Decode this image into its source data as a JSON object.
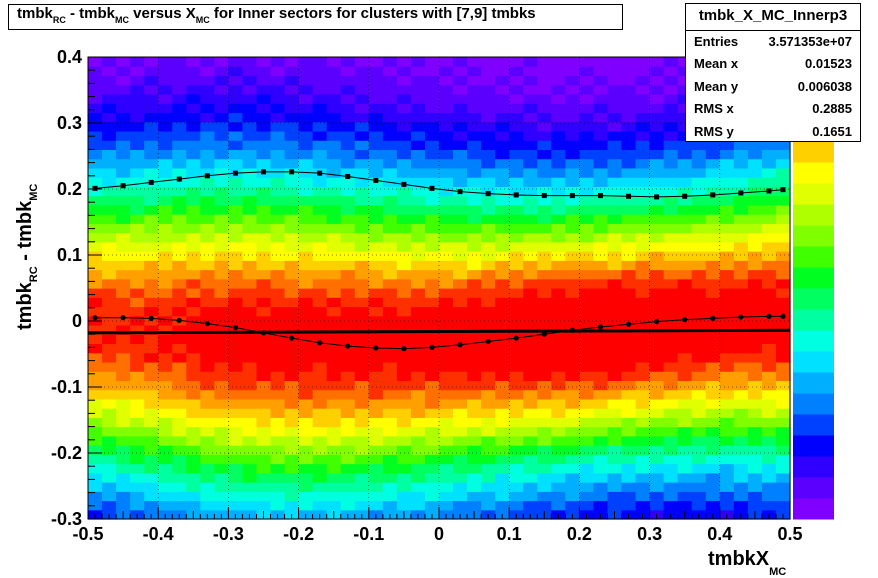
{
  "title": {
    "parts": [
      {
        "t": "tmbk",
        "sub": "RC"
      },
      {
        "t": " - tmbk",
        "sub": "MC"
      },
      {
        "t": " versus X",
        "sub": "MC"
      },
      {
        "t": " for Inner sectors for clusters with [7,9] tmbks",
        "sub": ""
      }
    ]
  },
  "stats": {
    "name": "tmbk_X_MC_Innerp3",
    "rows": [
      {
        "label": "Entries",
        "value": "3.571353e+07"
      },
      {
        "label": "Mean x",
        "value": "0.01523"
      },
      {
        "label": "Mean y",
        "value": "0.006038"
      },
      {
        "label": "RMS x",
        "value": "0.2885"
      },
      {
        "label": "RMS y",
        "value": "0.1651"
      }
    ]
  },
  "axes": {
    "ylabel_main": "tmbk",
    "ylabel_sub1": "RC",
    "ylabel_mid": " - tmbk",
    "ylabel_sub2": "MC",
    "xlabel_main": "tmbkX",
    "xlabel_sub": "MC"
  },
  "chart_data": {
    "type": "heatmap",
    "xlim": [
      -0.5,
      0.5
    ],
    "ylim": [
      -0.3,
      0.4
    ],
    "xticks": [
      -0.5,
      -0.4,
      -0.3,
      -0.2,
      -0.1,
      0,
      0.1,
      0.2,
      0.3,
      0.4,
      0.5
    ],
    "xtick_labels": [
      "-0.5",
      "-0.4",
      "-0.3",
      "-0.2",
      "-0.1",
      "0",
      "0.1",
      "0.2",
      "0.3",
      "0.4",
      "0.5"
    ],
    "yticks": [
      -0.3,
      -0.2,
      -0.1,
      0,
      0.1,
      0.2,
      0.3,
      0.4
    ],
    "ytick_labels": [
      "-0.3",
      "-0.2",
      "-0.1",
      "0",
      "0.1",
      "0.2",
      "0.3",
      "0.4"
    ],
    "grid": true,
    "colormap": [
      "#7f00ff",
      "#5b00ff",
      "#2f00ff",
      "#0000ff",
      "#0040ff",
      "#0080ff",
      "#00b0ff",
      "#00e0ff",
      "#00ffe0",
      "#00ffa0",
      "#00ff60",
      "#00ff20",
      "#40ff00",
      "#80ff00",
      "#b0ff00",
      "#e0ff00",
      "#ffff00",
      "#ffd000",
      "#ffa000",
      "#ff7000",
      "#ff3000",
      "#ff0000"
    ],
    "nx": 50,
    "ny": 50,
    "series": [
      {
        "name": "rms",
        "style": "square-markers",
        "x": [
          -0.49,
          -0.45,
          -0.41,
          -0.37,
          -0.33,
          -0.29,
          -0.25,
          -0.21,
          -0.17,
          -0.13,
          -0.09,
          -0.05,
          -0.01,
          0.03,
          0.07,
          0.11,
          0.15,
          0.19,
          0.23,
          0.27,
          0.31,
          0.35,
          0.39,
          0.43,
          0.47,
          0.49
        ],
        "y": [
          0.201,
          0.205,
          0.21,
          0.215,
          0.22,
          0.224,
          0.226,
          0.226,
          0.224,
          0.219,
          0.213,
          0.207,
          0.201,
          0.196,
          0.193,
          0.191,
          0.19,
          0.19,
          0.19,
          0.189,
          0.188,
          0.189,
          0.191,
          0.194,
          0.197,
          0.199
        ]
      },
      {
        "name": "mean",
        "style": "round-markers",
        "x": [
          -0.49,
          -0.45,
          -0.41,
          -0.37,
          -0.33,
          -0.29,
          -0.25,
          -0.21,
          -0.17,
          -0.13,
          -0.09,
          -0.05,
          -0.01,
          0.03,
          0.07,
          0.11,
          0.15,
          0.19,
          0.23,
          0.27,
          0.31,
          0.35,
          0.39,
          0.43,
          0.47,
          0.49
        ],
        "y": [
          0.005,
          0.005,
          0.004,
          0.001,
          -0.004,
          -0.01,
          -0.018,
          -0.026,
          -0.033,
          -0.038,
          -0.041,
          -0.042,
          -0.04,
          -0.036,
          -0.031,
          -0.026,
          -0.02,
          -0.014,
          -0.009,
          -0.005,
          -0.001,
          0.002,
          0.004,
          0.006,
          0.007,
          0.007
        ]
      },
      {
        "name": "fit",
        "style": "line",
        "x": [
          -0.5,
          0.5
        ],
        "y": [
          -0.018,
          -0.014
        ]
      }
    ]
  }
}
